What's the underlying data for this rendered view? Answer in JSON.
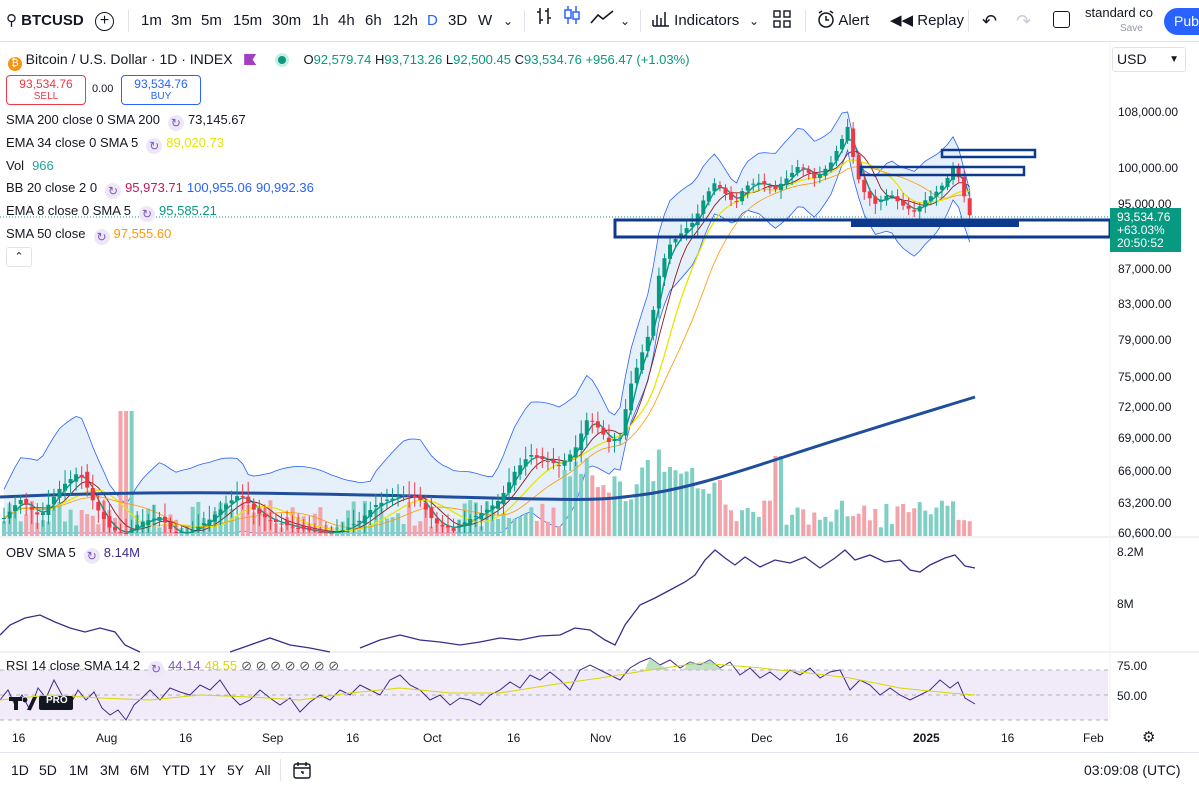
{
  "header": {
    "symbol": "BTCUSD",
    "timeframes": [
      "1m",
      "3m",
      "5m",
      "15m",
      "30m",
      "1h",
      "4h",
      "6h",
      "12h",
      "D",
      "3D",
      "W"
    ],
    "active_timeframe": "D",
    "indicators_label": "Indicators",
    "alert_label": "Alert",
    "replay_label": "Replay",
    "layout_name": "standard co",
    "layout_sub": "Save",
    "publish_label": "Pub"
  },
  "legend": {
    "title": "Bitcoin / U.S. Dollar · 1D · INDEX",
    "ohlc": {
      "open": "92,579.74",
      "high": "93,713.26",
      "low": "92,500.45",
      "close": "93,534.76",
      "change": "+956.47 (+1.03%)"
    },
    "sell_price": "93,534.76",
    "sell_label": "SELL",
    "spread": "0.00",
    "buy_price": "93,534.76",
    "buy_label": "BUY",
    "currency": "USD",
    "indicators": [
      {
        "name": "SMA 200 close 0 SMA 200",
        "values": [
          "73,145.67"
        ],
        "colors": [
          "#131722"
        ]
      },
      {
        "name": "EMA 34 close 0 SMA 5",
        "values": [
          "89,020.73"
        ],
        "colors": [
          "#e6e600"
        ]
      },
      {
        "name": "Vol",
        "values": [
          "966"
        ],
        "colors": [
          "#26a69a"
        ]
      },
      {
        "name": "BB 20 close 2 0",
        "values": [
          "95,973.71",
          "100,955.06",
          "90,992.36"
        ],
        "colors": [
          "#e91e63",
          "#2962ff",
          "#2962ff"
        ]
      },
      {
        "name": "EMA 8 close 0 SMA 5",
        "values": [
          "95,585.21"
        ],
        "colors": [
          "#089981"
        ]
      },
      {
        "name": "SMA 50 close",
        "values": [
          "97,555.60"
        ],
        "colors": [
          "#ff9800"
        ]
      }
    ]
  },
  "price_axis": {
    "ticks": [
      "108,000.00",
      "100,000.00",
      "95,000.00",
      "87,000.00",
      "83,000.00",
      "79,000.00",
      "75,000.00",
      "72,000.00",
      "69,000.00",
      "66,000.00",
      "63,200.00",
      "60,600.00"
    ],
    "last_price": "93,534.76",
    "last_change": "+63.03%",
    "countdown": "20:50:52"
  },
  "obv": {
    "label": "OBV",
    "sma": "SMA 5",
    "value": "8.14M",
    "ticks": [
      "8.2M",
      "8M"
    ]
  },
  "rsi": {
    "label": "RSI",
    "params": "14 close SMA 14 2",
    "value1": "44.14",
    "value2": "48.55",
    "extras": "⊘ ⊘ ⊘ ⊘ ⊘ ⊘ ⊘",
    "ticks": [
      "75.00",
      "50.00"
    ]
  },
  "date_axis": [
    "16",
    "Aug",
    "16",
    "Sep",
    "16",
    "Oct",
    "16",
    "Nov",
    "16",
    "Dec",
    "16",
    "2025",
    "16",
    "Feb"
  ],
  "footer": {
    "ranges": [
      "1D",
      "5D",
      "1M",
      "3M",
      "6M",
      "YTD",
      "1Y",
      "5Y",
      "All"
    ],
    "clock": "03:09:08 (UTC)"
  },
  "watermark": "TV PRO",
  "colors": {
    "up": "#089981",
    "down": "#f23645",
    "accent": "#2962ff",
    "box": "#0d3a8c",
    "sma200": "#1f4e9c",
    "bb_fill": "#dbe9f8"
  }
}
